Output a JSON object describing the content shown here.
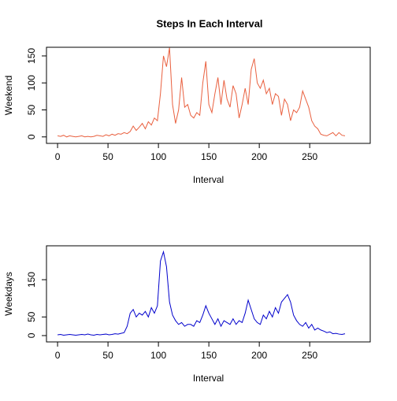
{
  "chart_data": [
    {
      "type": "line",
      "title": "Steps In Each Interval",
      "xlabel": "Interval",
      "ylabel": "Weekend",
      "color": "#e9603f",
      "x": [
        0,
        3,
        6,
        9,
        12,
        15,
        18,
        21,
        24,
        27,
        30,
        33,
        36,
        39,
        42,
        45,
        48,
        51,
        54,
        57,
        60,
        63,
        66,
        69,
        72,
        75,
        78,
        81,
        84,
        87,
        90,
        93,
        96,
        99,
        102,
        105,
        108,
        111,
        114,
        117,
        120,
        123,
        126,
        129,
        132,
        135,
        138,
        141,
        144,
        147,
        150,
        153,
        156,
        159,
        162,
        165,
        168,
        171,
        174,
        177,
        180,
        183,
        186,
        189,
        192,
        195,
        198,
        201,
        204,
        207,
        210,
        213,
        216,
        219,
        222,
        225,
        228,
        231,
        234,
        237,
        240,
        243,
        246,
        249,
        252,
        255,
        258,
        261,
        264,
        267,
        270,
        273,
        276,
        279,
        282,
        285
      ],
      "values": [
        2,
        1,
        3,
        0,
        2,
        1,
        0,
        1,
        2,
        0,
        1,
        0,
        1,
        3,
        2,
        1,
        4,
        2,
        5,
        3,
        6,
        5,
        8,
        6,
        10,
        20,
        12,
        18,
        25,
        15,
        28,
        22,
        35,
        30,
        80,
        150,
        130,
        165,
        60,
        25,
        50,
        110,
        55,
        60,
        40,
        35,
        45,
        40,
        100,
        140,
        60,
        45,
        80,
        110,
        60,
        105,
        70,
        55,
        95,
        80,
        35,
        60,
        90,
        60,
        125,
        145,
        100,
        90,
        105,
        80,
        90,
        60,
        80,
        75,
        40,
        70,
        60,
        30,
        50,
        45,
        55,
        85,
        70,
        55,
        30,
        20,
        15,
        5,
        3,
        2,
        5,
        8,
        2,
        8,
        3,
        2
      ],
      "xlim": [
        -11,
        310
      ],
      "ylim": [
        -12,
        166
      ],
      "xticks": [
        0,
        50,
        100,
        150,
        200,
        250
      ],
      "yticks": [
        0,
        50,
        100,
        150
      ]
    },
    {
      "type": "line",
      "xlabel": "Interval",
      "ylabel": "Weekdays",
      "color": "#0000cc",
      "x": [
        0,
        3,
        6,
        9,
        12,
        15,
        18,
        21,
        24,
        27,
        30,
        33,
        36,
        39,
        42,
        45,
        48,
        51,
        54,
        57,
        60,
        63,
        66,
        69,
        72,
        75,
        78,
        81,
        84,
        87,
        90,
        93,
        96,
        99,
        102,
        105,
        108,
        111,
        114,
        117,
        120,
        123,
        126,
        129,
        132,
        135,
        138,
        141,
        144,
        147,
        150,
        153,
        156,
        159,
        162,
        165,
        168,
        171,
        174,
        177,
        180,
        183,
        186,
        189,
        192,
        195,
        198,
        201,
        204,
        207,
        210,
        213,
        216,
        219,
        222,
        225,
        228,
        231,
        234,
        237,
        240,
        243,
        246,
        249,
        252,
        255,
        258,
        261,
        264,
        267,
        270,
        273,
        276,
        279,
        282,
        285
      ],
      "values": [
        2,
        3,
        1,
        2,
        3,
        2,
        1,
        2,
        3,
        2,
        4,
        2,
        1,
        3,
        2,
        3,
        4,
        2,
        3,
        5,
        4,
        6,
        8,
        25,
        60,
        70,
        50,
        60,
        55,
        65,
        50,
        75,
        60,
        80,
        200,
        225,
        185,
        90,
        55,
        40,
        30,
        35,
        25,
        30,
        30,
        25,
        40,
        35,
        55,
        80,
        60,
        45,
        30,
        45,
        25,
        40,
        35,
        30,
        45,
        30,
        40,
        35,
        60,
        95,
        70,
        45,
        35,
        30,
        55,
        45,
        65,
        50,
        75,
        60,
        90,
        100,
        110,
        90,
        55,
        40,
        30,
        25,
        35,
        20,
        30,
        15,
        20,
        15,
        12,
        8,
        10,
        5,
        6,
        4,
        3,
        5
      ],
      "xlim": [
        -11,
        310
      ],
      "ylim": [
        -17,
        241
      ],
      "xticks": [
        0,
        50,
        100,
        150,
        200,
        250
      ],
      "yticks": [
        0,
        50,
        150
      ]
    }
  ]
}
